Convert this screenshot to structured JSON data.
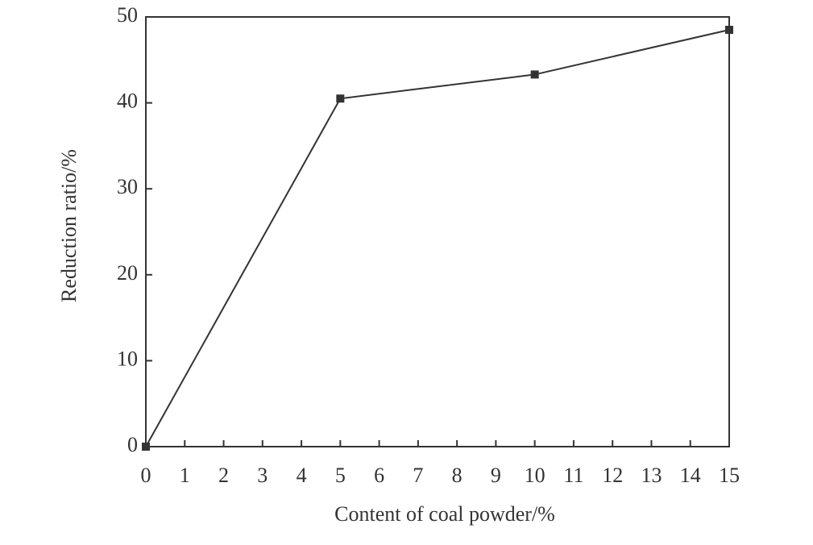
{
  "chart_data": {
    "type": "line",
    "xlabel": "Content of coal powder/%",
    "ylabel": "Reduction ratio/%",
    "x": [
      0,
      5,
      10,
      15
    ],
    "series": [
      {
        "name": "Reduction ratio",
        "color": "#333333",
        "values": [
          0,
          40.5,
          43.3,
          48.5
        ]
      }
    ],
    "xlim": [
      0,
      15
    ],
    "xticks": [
      0,
      1,
      2,
      3,
      4,
      5,
      6,
      7,
      8,
      9,
      10,
      11,
      12,
      13,
      14,
      15
    ],
    "ylim": [
      0,
      50
    ],
    "yticks": [
      0,
      10,
      20,
      30,
      40,
      50
    ]
  }
}
